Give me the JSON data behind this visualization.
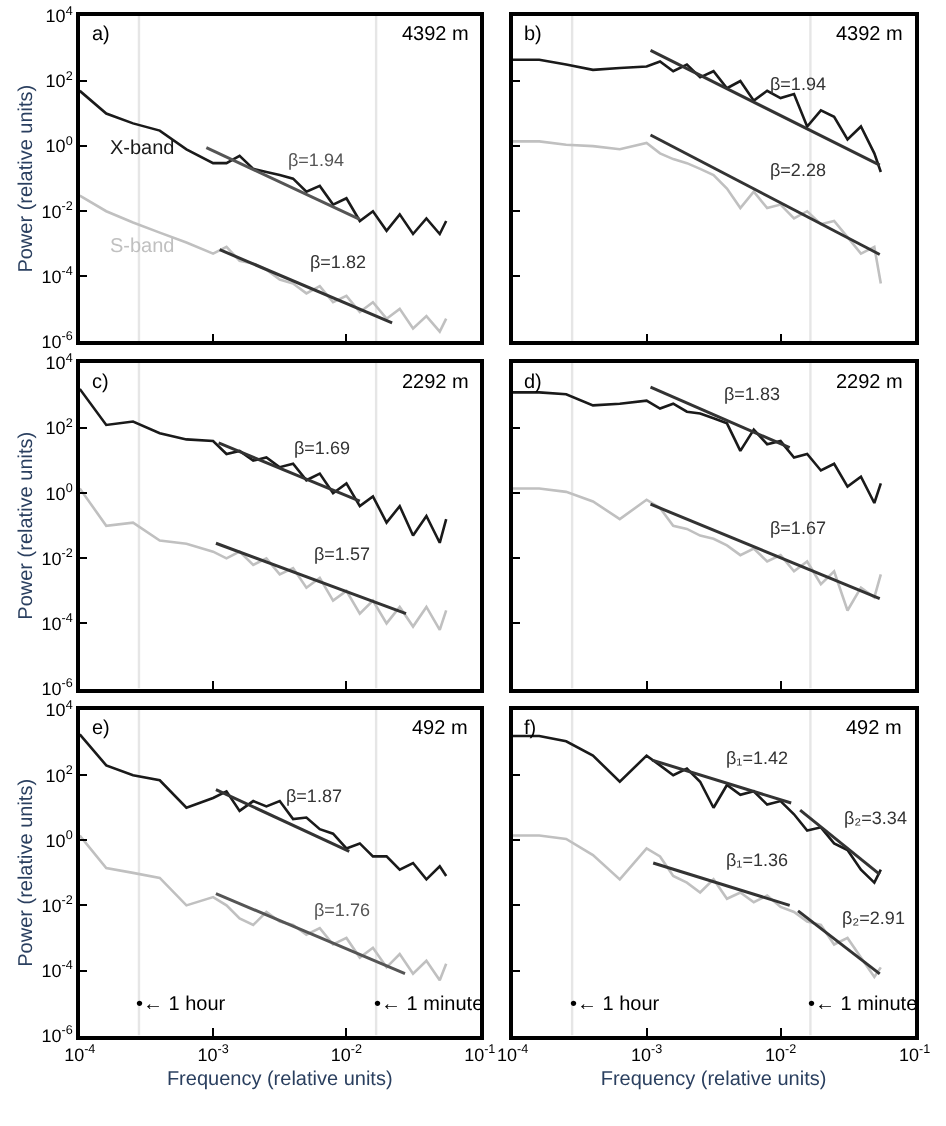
{
  "chart_data": [
    {
      "type": "line",
      "x": [
        0.0001,
        0.000158,
        0.000251,
        0.000398,
        0.000631,
        0.001,
        0.00126,
        0.00158,
        0.002,
        0.00251,
        0.00316,
        0.00398,
        0.00501,
        0.00631,
        0.00794,
        0.01,
        0.0126,
        0.0158,
        0.02,
        0.0251,
        0.0316,
        0.0398,
        0.0501,
        0.056
      ],
      "series": [
        {
          "name": "X-band",
          "color": "#1a1a1a",
          "values": [
            50,
            10,
            5,
            3,
            0.8,
            0.3,
            0.3,
            0.5,
            0.2,
            0.16,
            0.13,
            0.1,
            0.04,
            0.06,
            0.016,
            0.025,
            0.005,
            0.01,
            0.0025,
            0.008,
            0.002,
            0.006,
            0.002,
            0.005
          ]
        },
        {
          "name": "S-band",
          "color": "#c0c0c0",
          "values": [
            0.03,
            0.01,
            0.0045,
            0.0022,
            0.0011,
            0.0005,
            0.0008,
            0.0003,
            0.00025,
            0.00016,
            8e-05,
            6e-05,
            3e-05,
            5e-05,
            1.6e-05,
            2.5e-05,
            8e-06,
            1.6e-05,
            5e-06,
            1e-05,
            2.5e-06,
            6e-06,
            2e-06,
            5e-06
          ]
        },
        {
          "name": "β=1.94",
          "type": "line",
          "color": "#555555",
          "x": [
            0.00089,
            0.0126
          ],
          "values": [
            0.9,
            0.0056
          ]
        },
        {
          "name": "β=1.82",
          "type": "line",
          "color": "#333333",
          "x": [
            0.00112,
            0.022
          ],
          "values": [
            0.00066,
            3.7e-06
          ]
        }
      ],
      "xlim": [
        0.0001,
        0.1
      ],
      "ylim": [
        1e-06,
        10000
      ],
      "xticks": [
        {
          "value": 0.0001,
          "label": "10$^{-4}$"
        },
        {
          "value": 0.001,
          "label": "10$^{-3}$"
        },
        {
          "value": 0.01,
          "label": "10$^{-2}$"
        },
        {
          "value": 0.1,
          "label": "10$^{-1}$"
        }
      ],
      "yticks": [
        {
          "value": 1e-06,
          "label": "10$^{-6}$"
        },
        {
          "value": 0.0001,
          "label": "10$^{-4}$"
        },
        {
          "value": 0.01,
          "label": "10$^{-2}$"
        },
        {
          "value": 1,
          "label": "10$^{0}$"
        },
        {
          "value": 100,
          "label": "10$^{2}$"
        },
        {
          "value": 10000,
          "label": "10$^{4}$"
        }
      ],
      "log": "xy",
      "tick_labels": "y",
      "ylabel": "Power (relative units)",
      "ref_lines": [
        {
          "axis": "x",
          "value": 0.000278,
          "color": "#e6e6e6"
        },
        {
          "axis": "x",
          "value": 0.0167,
          "color": "#e6e6e6"
        }
      ],
      "annotations": [
        "a)",
        "4392 m"
      ]
    },
    {
      "type": "line",
      "x": [
        0.0001,
        0.000158,
        0.000251,
        0.000398,
        0.000631,
        0.001,
        0.00126,
        0.00158,
        0.002,
        0.00251,
        0.00316,
        0.00398,
        0.00501,
        0.00631,
        0.00794,
        0.01,
        0.0126,
        0.0158,
        0.02,
        0.0251,
        0.0316,
        0.0398,
        0.0501,
        0.056
      ],
      "series": [
        {
          "color": "#1a1a1a",
          "values": [
            450,
            450,
            320,
            220,
            250,
            280,
            400,
            200,
            320,
            130,
            200,
            60,
            100,
            25,
            50,
            30,
            40,
            4,
            12.5,
            8,
            1.6,
            4,
            0.6,
            0.16
          ]
        },
        {
          "color": "#c0c0c0",
          "values": [
            1.4,
            1.4,
            1.1,
            1,
            0.8,
            1.25,
            0.6,
            0.4,
            0.3,
            0.2,
            0.13,
            0.05,
            0.0125,
            0.04,
            0.0125,
            0.016,
            0.006,
            0.01,
            0.004,
            0.005,
            0.0016,
            0.0005,
            0.0008,
            6e-05
          ]
        },
        {
          "name": "β=1.94",
          "type": "line",
          "color": "#333333",
          "x": [
            0.00107,
            0.055
          ],
          "values": [
            870,
            0.26
          ]
        },
        {
          "name": "β=2.28",
          "type": "line",
          "color": "#333333",
          "x": [
            0.00107,
            0.055
          ],
          "values": [
            2.2,
            0.00047
          ]
        }
      ],
      "xlim": [
        0.0001,
        0.1
      ],
      "ylim": [
        1e-06,
        10000
      ],
      "xticks": [
        {
          "value": 0.0001,
          "label": "10$^{-4}$"
        },
        {
          "value": 0.001,
          "label": "10$^{-3}$"
        },
        {
          "value": 0.01,
          "label": "10$^{-2}$"
        },
        {
          "value": 0.1,
          "label": "10$^{-1}$"
        }
      ],
      "yticks": [
        {
          "value": 1e-06,
          "label": "10$^{-6}$"
        },
        {
          "value": 0.0001,
          "label": "10$^{-4}$"
        },
        {
          "value": 0.01,
          "label": "10$^{-2}$"
        },
        {
          "value": 1,
          "label": "10$^{0}$"
        },
        {
          "value": 100,
          "label": "10$^{2}$"
        },
        {
          "value": 10000,
          "label": "10$^{4}$"
        }
      ],
      "log": "xy",
      "tick_labels": false,
      "ref_lines": [
        {
          "axis": "x",
          "value": 0.000278,
          "color": "#e6e6e6"
        },
        {
          "axis": "x",
          "value": 0.0167,
          "color": "#e6e6e6"
        }
      ],
      "annotations": [
        "b)",
        "4392 m"
      ]
    },
    {
      "type": "line",
      "x": [
        0.0001,
        0.000158,
        0.000251,
        0.000398,
        0.000631,
        0.001,
        0.00126,
        0.00158,
        0.002,
        0.00251,
        0.00316,
        0.00398,
        0.00501,
        0.00631,
        0.00794,
        0.01,
        0.0126,
        0.0158,
        0.02,
        0.0251,
        0.0316,
        0.0398,
        0.0501,
        0.056
      ],
      "series": [
        {
          "color": "#1a1a1a",
          "values": [
            1600,
            125,
            160,
            70,
            45,
            40,
            16,
            20,
            10,
            12.5,
            6.3,
            8,
            2.5,
            4,
            1,
            2,
            0.4,
            0.8,
            0.125,
            0.4,
            0.05,
            0.2,
            0.03,
            0.16
          ]
        },
        {
          "color": "#c0c0c0",
          "values": [
            1.4,
            0.1,
            0.125,
            0.035,
            0.028,
            0.016,
            0.01,
            0.016,
            0.0063,
            0.01,
            0.0032,
            0.005,
            0.00125,
            0.0025,
            0.0005,
            0.001,
            0.0002,
            0.0005,
            0.0001,
            0.00032,
            8e-05,
            0.00032,
            6.3e-05,
            0.00025
          ]
        },
        {
          "name": "β=1.69",
          "type": "line",
          "color": "#333333",
          "x": [
            0.0011,
            0.0126
          ],
          "values": [
            35,
            0.57
          ]
        },
        {
          "name": "β=1.57",
          "type": "line",
          "color": "#333333",
          "x": [
            0.00105,
            0.028
          ],
          "values": [
            0.029,
            0.0002
          ]
        }
      ],
      "xlim": [
        0.0001,
        0.1
      ],
      "ylim": [
        1e-06,
        10000
      ],
      "xticks": [
        {
          "value": 0.0001,
          "label": "10$^{-4}$"
        },
        {
          "value": 0.001,
          "label": "10$^{-3}$"
        },
        {
          "value": 0.01,
          "label": "10$^{-2}$"
        },
        {
          "value": 0.1,
          "label": "10$^{-1}$"
        }
      ],
      "yticks": [
        {
          "value": 1e-06,
          "label": "10$^{-6}$"
        },
        {
          "value": 0.0001,
          "label": "10$^{-4}$"
        },
        {
          "value": 0.01,
          "label": "10$^{-2}$"
        },
        {
          "value": 1,
          "label": "10$^{0}$"
        },
        {
          "value": 100,
          "label": "10$^{2}$"
        },
        {
          "value": 10000,
          "label": "10$^{4}$"
        }
      ],
      "log": "xy",
      "tick_labels": "y",
      "ylabel": "Power (relative units)",
      "ref_lines": [
        {
          "axis": "x",
          "value": 0.000278,
          "color": "#e6e6e6"
        },
        {
          "axis": "x",
          "value": 0.0167,
          "color": "#e6e6e6"
        }
      ],
      "annotations": [
        "c)",
        "2292 m"
      ]
    },
    {
      "type": "line",
      "x": [
        0.0001,
        0.000158,
        0.000251,
        0.000398,
        0.000631,
        0.001,
        0.00126,
        0.00158,
        0.002,
        0.00251,
        0.00316,
        0.00398,
        0.00501,
        0.00631,
        0.00794,
        0.01,
        0.0126,
        0.0158,
        0.02,
        0.0251,
        0.0316,
        0.0398,
        0.0501,
        0.056
      ],
      "series": [
        {
          "color": "#1a1a1a",
          "values": [
            1250,
            1250,
            1100,
            500,
            560,
            700,
            400,
            560,
            320,
            280,
            200,
            140,
            20,
            90,
            32,
            40,
            12.5,
            16,
            5,
            8,
            1.6,
            3.2,
            0.5,
            2
          ]
        },
        {
          "color": "#c0c0c0",
          "values": [
            1.4,
            1.4,
            1.1,
            0.56,
            0.16,
            0.63,
            0.35,
            0.1,
            0.08,
            0.05,
            0.04,
            0.025,
            0.0125,
            0.02,
            0.008,
            0.0125,
            0.004,
            0.008,
            0.0016,
            0.004,
            0.00025,
            0.00125,
            0.00063,
            0.0032
          ]
        },
        {
          "name": "β=1.83",
          "type": "line",
          "color": "#333333",
          "x": [
            0.00107,
            0.0117
          ],
          "values": [
            1800,
            25
          ]
        },
        {
          "name": "β=1.67",
          "type": "line",
          "color": "#333333",
          "x": [
            0.00107,
            0.055
          ],
          "values": [
            0.46,
            0.00058
          ]
        }
      ],
      "xlim": [
        0.0001,
        0.1
      ],
      "ylim": [
        1e-06,
        10000
      ],
      "xticks": [
        {
          "value": 0.0001,
          "label": "10$^{-4}$"
        },
        {
          "value": 0.001,
          "label": "10$^{-3}$"
        },
        {
          "value": 0.01,
          "label": "10$^{-2}$"
        },
        {
          "value": 0.1,
          "label": "10$^{-1}$"
        }
      ],
      "yticks": [
        {
          "value": 1e-06,
          "label": "10$^{-6}$"
        },
        {
          "value": 0.0001,
          "label": "10$^{-4}$"
        },
        {
          "value": 0.01,
          "label": "10$^{-2}$"
        },
        {
          "value": 1,
          "label": "10$^{0}$"
        },
        {
          "value": 100,
          "label": "10$^{2}$"
        },
        {
          "value": 10000,
          "label": "10$^{4}$"
        }
      ],
      "log": "xy",
      "tick_labels": false,
      "ref_lines": [
        {
          "axis": "x",
          "value": 0.000278,
          "color": "#e6e6e6"
        },
        {
          "axis": "x",
          "value": 0.0167,
          "color": "#e6e6e6"
        }
      ],
      "annotations": [
        "d)",
        "2292 m"
      ]
    },
    {
      "type": "line",
      "x": [
        0.0001,
        0.000158,
        0.000251,
        0.000398,
        0.000631,
        0.001,
        0.00126,
        0.00158,
        0.002,
        0.00251,
        0.00316,
        0.00398,
        0.00501,
        0.00631,
        0.00794,
        0.01,
        0.0126,
        0.0158,
        0.02,
        0.0251,
        0.0316,
        0.0398,
        0.0501,
        0.056
      ],
      "series": [
        {
          "color": "#1a1a1a",
          "values": [
            1800,
            200,
            100,
            70,
            10,
            20,
            32,
            8,
            16,
            11,
            16,
            4.5,
            5,
            2.2,
            1.6,
            0.56,
            0.8,
            0.32,
            0.32,
            0.125,
            0.2,
            0.063,
            0.16,
            0.08
          ]
        },
        {
          "color": "#c0c0c0",
          "values": [
            1.4,
            0.14,
            0.1,
            0.07,
            0.01,
            0.018,
            0.01,
            0.004,
            0.0025,
            0.0063,
            0.0032,
            0.0025,
            0.00125,
            0.002,
            0.00063,
            0.001,
            0.00025,
            0.0005,
            0.000125,
            0.00032,
            8e-05,
            0.0002,
            5e-05,
            0.00016
          ]
        },
        {
          "name": "β=1.87",
          "type": "line",
          "color": "#333333",
          "x": [
            0.00105,
            0.0105
          ],
          "values": [
            36,
            0.46
          ]
        },
        {
          "name": "β=1.76",
          "type": "line",
          "color": "#555555",
          "x": [
            0.00105,
            0.0275
          ],
          "values": [
            0.023,
            8e-05
          ]
        }
      ],
      "xlim": [
        0.0001,
        0.1
      ],
      "ylim": [
        1e-06,
        10000
      ],
      "xticks": [
        {
          "value": 0.0001,
          "label": "10$^{-4}$"
        },
        {
          "value": 0.001,
          "label": "10$^{-3}$"
        },
        {
          "value": 0.01,
          "label": "10$^{-2}$"
        },
        {
          "value": 0.1,
          "label": "10$^{-1}$"
        }
      ],
      "yticks": [
        {
          "value": 1e-06,
          "label": "10$^{-6}$"
        },
        {
          "value": 0.0001,
          "label": "10$^{-4}$"
        },
        {
          "value": 0.01,
          "label": "10$^{-2}$"
        },
        {
          "value": 1,
          "label": "10$^{0}$"
        },
        {
          "value": 100,
          "label": "10$^{2}$"
        },
        {
          "value": 10000,
          "label": "10$^{4}$"
        }
      ],
      "log": "xy",
      "xlabel": "Frequency (relative units)",
      "ylabel": "Power (relative units)",
      "ref_lines": [
        {
          "axis": "x",
          "value": 0.000278,
          "color": "#e6e6e6",
          "label": "•← 1 hour"
        },
        {
          "axis": "x",
          "value": 0.0167,
          "color": "#e6e6e6",
          "label": "•← 1 minute"
        }
      ],
      "annotations": [
        "e)",
        "492 m"
      ]
    },
    {
      "type": "line",
      "x": [
        0.0001,
        0.000158,
        0.000251,
        0.000398,
        0.000631,
        0.001,
        0.00126,
        0.00158,
        0.002,
        0.00251,
        0.00316,
        0.00398,
        0.00501,
        0.00631,
        0.00794,
        0.01,
        0.0126,
        0.0158,
        0.02,
        0.0251,
        0.0316,
        0.0398,
        0.0501,
        0.056
      ],
      "series": [
        {
          "color": "#1a1a1a",
          "values": [
            1600,
            1600,
            1100,
            400,
            63,
            400,
            200,
            100,
            160,
            63,
            10,
            50,
            25,
            32,
            12.5,
            16,
            6.3,
            2,
            2.5,
            0.8,
            0.5,
            0.125,
            0.05,
            0.125
          ]
        },
        {
          "color": "#c0c0c0",
          "values": [
            1.4,
            1.4,
            1.1,
            0.35,
            0.063,
            0.56,
            0.32,
            0.08,
            0.05,
            0.025,
            0.063,
            0.016,
            0.025,
            0.0125,
            0.02,
            0.009,
            0.0063,
            0.0032,
            0.0025,
            0.00063,
            0.001,
            0.00025,
            6.3e-05,
            0.000125
          ]
        },
        {
          "name": "β₁=1.42",
          "type": "line",
          "color": "#333333",
          "x": [
            0.0011,
            0.012
          ],
          "values": [
            290,
            14
          ]
        },
        {
          "name": "β₂=3.34",
          "type": "line",
          "color": "#333333",
          "x": [
            0.014,
            0.055
          ],
          "values": [
            8.5,
            0.09
          ]
        },
        {
          "name": "β₁=1.36",
          "type": "line",
          "color": "#333333",
          "x": [
            0.00112,
            0.0117
          ],
          "values": [
            0.2,
            0.01
          ]
        },
        {
          "name": "β₂=2.91",
          "type": "line",
          "color": "#333333",
          "x": [
            0.0135,
            0.055
          ],
          "values": [
            0.0068,
            7.9e-05
          ]
        }
      ],
      "xlim": [
        0.0001,
        0.1
      ],
      "ylim": [
        1e-06,
        10000
      ],
      "xticks": [
        {
          "value": 0.0001,
          "label": "10$^{-4}$"
        },
        {
          "value": 0.001,
          "label": "10$^{-3}$"
        },
        {
          "value": 0.01,
          "label": "10$^{-2}$"
        },
        {
          "value": 0.1,
          "label": "10$^{-1}$"
        }
      ],
      "yticks": [
        {
          "value": 1e-06,
          "label": "10$^{-6}$"
        },
        {
          "value": 0.0001,
          "label": "10$^{-4}$"
        },
        {
          "value": 0.01,
          "label": "10$^{-2}$"
        },
        {
          "value": 1,
          "label": "10$^{0}$"
        },
        {
          "value": 100,
          "label": "10$^{2}$"
        },
        {
          "value": 10000,
          "label": "10$^{4}$"
        }
      ],
      "log": "xy",
      "tick_labels": "x",
      "xlabel": "Frequency (relative units)",
      "ref_lines": [
        {
          "axis": "x",
          "value": 0.000278,
          "color": "#e6e6e6",
          "label": "•← 1 hour"
        },
        {
          "axis": "x",
          "value": 0.0167,
          "color": "#e6e6e6",
          "label": "•← 1 minute"
        }
      ],
      "annotations": [
        "f)",
        "492 m"
      ]
    }
  ]
}
